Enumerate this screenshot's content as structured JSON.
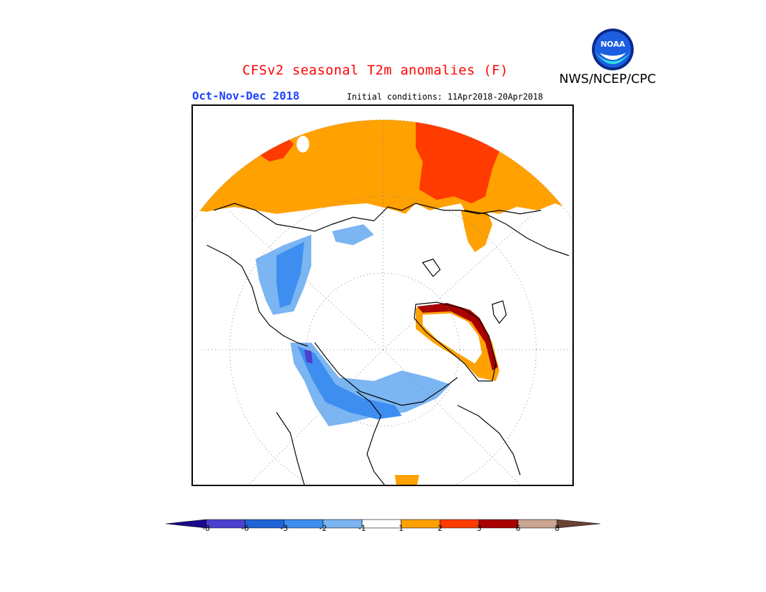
{
  "header": {
    "title": "CFSv2 seasonal T2m anomalies (F)",
    "title_color": "#ff0000",
    "agency": "NWS/NCEP/CPC",
    "season": "Oct-Nov-Dec 2018",
    "season_color": "#1e44ff",
    "initial_conditions": "Initial conditions: 11Apr2018-20Apr2018",
    "logo_text": "NOAA"
  },
  "map": {
    "projection": "north polar stereographic",
    "grid": "dotted",
    "background": "#ffffff"
  },
  "colorbar": {
    "labels": [
      "-8",
      "-6",
      "-3",
      "-2",
      "-1",
      "1",
      "2",
      "3",
      "6",
      "8"
    ],
    "colors": [
      "#1a0a8c",
      "#4b3fd0",
      "#1f64d6",
      "#3d8ef0",
      "#7bb5f2",
      "#ffffff",
      "#ffa100",
      "#ff3b00",
      "#a80000",
      "#c9a592",
      "#6b4334"
    ],
    "under_color": "#1a0a8c",
    "over_color": "#6b4334"
  }
}
